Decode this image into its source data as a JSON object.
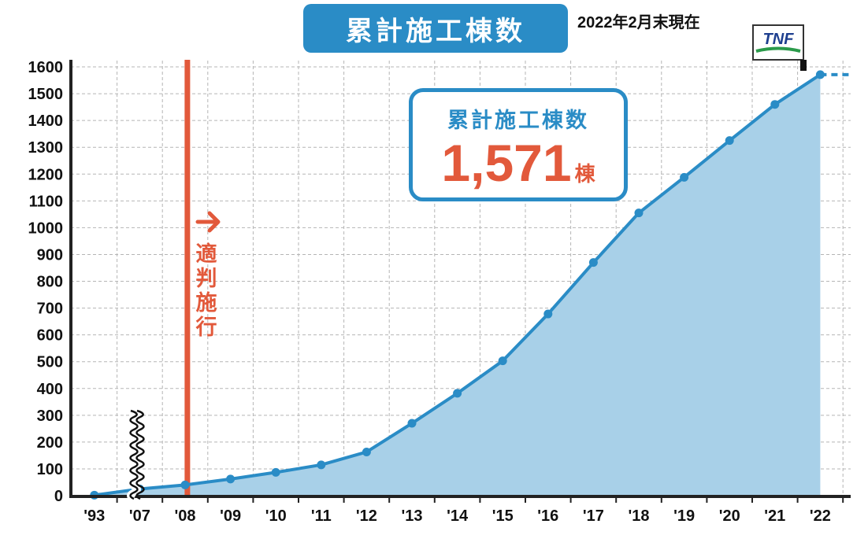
{
  "title": "累計施工棟数",
  "as_of": "2022年2月末現在",
  "logo_text": "TNF",
  "callout": {
    "label": "累計施工棟数",
    "value": "1,571",
    "unit": "棟"
  },
  "law_marker": {
    "label": "適判施行"
  },
  "colors": {
    "line": "#2a8cc6",
    "fill": "#a8d0e8",
    "accent": "#e2593b",
    "grid": "#b5b5b5",
    "badge": "#2a8cc6"
  },
  "chart_data": {
    "type": "area",
    "title": "累計施工棟数",
    "xlabel": "",
    "ylabel": "",
    "x_tick_labels": [
      "'93",
      "'07",
      "'08",
      "'09",
      "'10",
      "'11",
      "'12",
      "'13",
      "'14",
      "'15",
      "'16",
      "'17",
      "'18",
      "'19",
      "'20",
      "'21",
      "'22"
    ],
    "y_tick_labels": [
      "0",
      "100",
      "200",
      "300",
      "400",
      "500",
      "600",
      "700",
      "800",
      "900",
      "1000",
      "1100",
      "1200",
      "1300",
      "1400",
      "1500",
      "1600"
    ],
    "ylim": [
      0,
      1600
    ],
    "grid": true,
    "axis_break_between": [
      "'93",
      "'07"
    ],
    "vertical_marker": {
      "x": "'08",
      "label": "適判施行"
    },
    "series": [
      {
        "values": [
          {
            "x": "'93",
            "y": 2
          },
          {
            "x": "'07",
            "y": 25
          },
          {
            "x": "'08",
            "y": 40
          },
          {
            "x": "'09",
            "y": 62
          },
          {
            "x": "'10",
            "y": 87
          },
          {
            "x": "'11",
            "y": 115
          },
          {
            "x": "'12",
            "y": 163
          },
          {
            "x": "'13",
            "y": 270
          },
          {
            "x": "'14",
            "y": 382
          },
          {
            "x": "'15",
            "y": 503
          },
          {
            "x": "'16",
            "y": 678
          },
          {
            "x": "'17",
            "y": 870
          },
          {
            "x": "'18",
            "y": 1055
          },
          {
            "x": "'19",
            "y": 1188
          },
          {
            "x": "'20",
            "y": 1325
          },
          {
            "x": "'21",
            "y": 1460
          },
          {
            "x": "'22",
            "y": 1571
          }
        ]
      }
    ]
  }
}
